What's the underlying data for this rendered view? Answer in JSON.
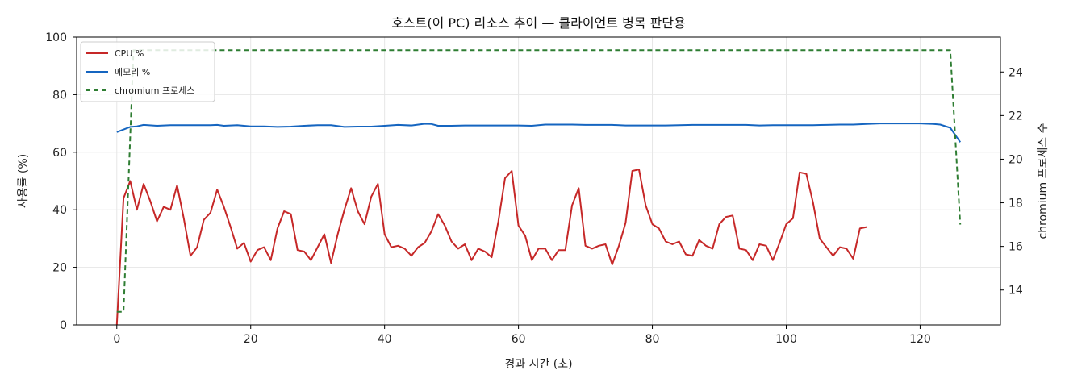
{
  "chart_data": {
    "type": "line",
    "title": "호스트(이 PC) 리소스 추이 — 클라이언트 병목 판단용",
    "xlabel": "경과 시간 (초)",
    "ylabel": "사용률 (%)",
    "ylabel_right": "chromium 프로세스 수",
    "xlim": [
      -6,
      132
    ],
    "ylim": [
      0,
      100
    ],
    "ylim_right": [
      12.4,
      25.6
    ],
    "xticks": [
      0,
      20,
      40,
      60,
      80,
      100,
      120
    ],
    "yticks": [
      0,
      20,
      40,
      60,
      80,
      100
    ],
    "yticks_right": [
      14,
      16,
      18,
      20,
      22,
      24
    ],
    "grid": true,
    "legend_position": "top-left",
    "series": [
      {
        "name": "CPU %",
        "axis": "left",
        "color": "#c62828",
        "style": "solid",
        "points": [
          [
            0,
            0
          ],
          [
            1,
            44
          ],
          [
            2,
            50
          ],
          [
            3,
            40
          ],
          [
            4,
            49
          ],
          [
            5,
            43
          ],
          [
            6,
            36
          ],
          [
            7,
            41
          ],
          [
            8,
            40
          ],
          [
            9,
            48.5
          ],
          [
            10,
            37
          ],
          [
            11,
            24
          ],
          [
            12,
            27
          ],
          [
            13,
            36.5
          ],
          [
            14,
            39
          ],
          [
            15,
            47
          ],
          [
            16,
            41
          ],
          [
            17,
            34
          ],
          [
            18,
            26.5
          ],
          [
            19,
            28.5
          ],
          [
            20,
            22
          ],
          [
            21,
            26
          ],
          [
            22,
            27
          ],
          [
            23,
            22.5
          ],
          [
            24,
            33.5
          ],
          [
            25,
            39.5
          ],
          [
            26,
            38.5
          ],
          [
            27,
            26
          ],
          [
            28,
            25.5
          ],
          [
            29,
            22.5
          ],
          [
            30,
            27
          ],
          [
            31,
            31.5
          ],
          [
            32,
            21.5
          ],
          [
            33,
            31.5
          ],
          [
            34,
            40
          ],
          [
            35,
            47.5
          ],
          [
            36,
            39.5
          ],
          [
            37,
            35
          ],
          [
            38,
            44.5
          ],
          [
            39,
            49
          ],
          [
            40,
            31.5
          ],
          [
            41,
            27
          ],
          [
            42,
            27.5
          ],
          [
            43,
            26.5
          ],
          [
            44,
            24
          ],
          [
            45,
            27
          ],
          [
            46,
            28.5
          ],
          [
            47,
            32.5
          ],
          [
            48,
            38.5
          ],
          [
            49,
            34.5
          ],
          [
            50,
            29
          ],
          [
            51,
            26.5
          ],
          [
            52,
            28
          ],
          [
            53,
            22.5
          ],
          [
            54,
            26.5
          ],
          [
            55,
            25.5
          ],
          [
            56,
            23.5
          ],
          [
            57,
            36
          ],
          [
            58,
            51
          ],
          [
            59,
            53.5
          ],
          [
            60,
            34.5
          ],
          [
            61,
            31
          ],
          [
            62,
            22.5
          ],
          [
            63,
            26.5
          ],
          [
            64,
            26.5
          ],
          [
            65,
            22.5
          ],
          [
            66,
            26
          ],
          [
            67,
            26
          ],
          [
            68,
            41.5
          ],
          [
            69,
            47.5
          ],
          [
            70,
            27.5
          ],
          [
            71,
            26.5
          ],
          [
            72,
            27.5
          ],
          [
            73,
            28
          ],
          [
            74,
            21
          ],
          [
            75,
            27.5
          ],
          [
            76,
            35.5
          ],
          [
            77,
            53.5
          ],
          [
            78,
            54
          ],
          [
            79,
            41.5
          ],
          [
            80,
            35
          ],
          [
            81,
            33.5
          ],
          [
            82,
            29
          ],
          [
            83,
            28
          ],
          [
            84,
            29
          ],
          [
            85,
            24.5
          ],
          [
            86,
            24
          ],
          [
            87,
            29.5
          ],
          [
            88,
            27.5
          ],
          [
            89,
            26.5
          ],
          [
            90,
            35
          ],
          [
            91,
            37.5
          ],
          [
            92,
            38
          ],
          [
            93,
            26.5
          ],
          [
            94,
            26
          ],
          [
            95,
            22.5
          ],
          [
            96,
            28
          ],
          [
            97,
            27.5
          ],
          [
            98,
            22.5
          ],
          [
            99,
            28.5
          ],
          [
            100,
            35
          ],
          [
            101,
            37
          ],
          [
            102,
            53
          ],
          [
            103,
            52.5
          ],
          [
            104,
            42.5
          ],
          [
            105,
            30
          ],
          [
            106,
            27
          ],
          [
            107,
            24
          ],
          [
            108,
            27
          ],
          [
            109,
            26.5
          ],
          [
            110,
            23
          ],
          [
            111,
            33.5
          ],
          [
            112,
            34
          ]
        ]
      },
      {
        "name": "메모리 %",
        "axis": "left",
        "color": "#1565c0",
        "style": "solid",
        "points": [
          [
            0,
            67
          ],
          [
            2,
            68.8
          ],
          [
            3,
            69
          ],
          [
            4,
            69.5
          ],
          [
            6,
            69.2
          ],
          [
            8,
            69.4
          ],
          [
            10,
            69.4
          ],
          [
            12,
            69.4
          ],
          [
            14,
            69.4
          ],
          [
            15,
            69.5
          ],
          [
            16,
            69.2
          ],
          [
            18,
            69.4
          ],
          [
            20,
            69
          ],
          [
            22,
            69
          ],
          [
            24,
            68.8
          ],
          [
            26,
            68.9
          ],
          [
            28,
            69.2
          ],
          [
            30,
            69.4
          ],
          [
            32,
            69.4
          ],
          [
            34,
            68.8
          ],
          [
            36,
            68.9
          ],
          [
            38,
            68.9
          ],
          [
            40,
            69.2
          ],
          [
            42,
            69.5
          ],
          [
            44,
            69.3
          ],
          [
            46,
            69.9
          ],
          [
            47,
            69.8
          ],
          [
            48,
            69.2
          ],
          [
            50,
            69.2
          ],
          [
            52,
            69.3
          ],
          [
            54,
            69.3
          ],
          [
            56,
            69.3
          ],
          [
            58,
            69.3
          ],
          [
            60,
            69.3
          ],
          [
            62,
            69.2
          ],
          [
            64,
            69.6
          ],
          [
            66,
            69.6
          ],
          [
            68,
            69.6
          ],
          [
            70,
            69.5
          ],
          [
            72,
            69.5
          ],
          [
            74,
            69.5
          ],
          [
            76,
            69.3
          ],
          [
            78,
            69.3
          ],
          [
            80,
            69.3
          ],
          [
            82,
            69.3
          ],
          [
            84,
            69.4
          ],
          [
            86,
            69.5
          ],
          [
            88,
            69.5
          ],
          [
            90,
            69.5
          ],
          [
            92,
            69.5
          ],
          [
            94,
            69.5
          ],
          [
            96,
            69.3
          ],
          [
            98,
            69.4
          ],
          [
            100,
            69.4
          ],
          [
            102,
            69.4
          ],
          [
            104,
            69.4
          ],
          [
            106,
            69.5
          ],
          [
            108,
            69.6
          ],
          [
            110,
            69.6
          ],
          [
            112,
            69.8
          ],
          [
            114,
            70
          ],
          [
            116,
            70
          ],
          [
            118,
            70
          ],
          [
            120,
            70
          ],
          [
            122,
            69.8
          ],
          [
            123,
            69.6
          ],
          [
            124.5,
            68.5
          ],
          [
            126,
            63.5
          ]
        ]
      },
      {
        "name": "chromium 프로세스",
        "axis": "right",
        "color": "#2e7d32",
        "style": "dashed",
        "points": [
          [
            0,
            13
          ],
          [
            1,
            13
          ],
          [
            2.5,
            25
          ],
          [
            124.5,
            25
          ],
          [
            126,
            17
          ]
        ]
      }
    ]
  }
}
